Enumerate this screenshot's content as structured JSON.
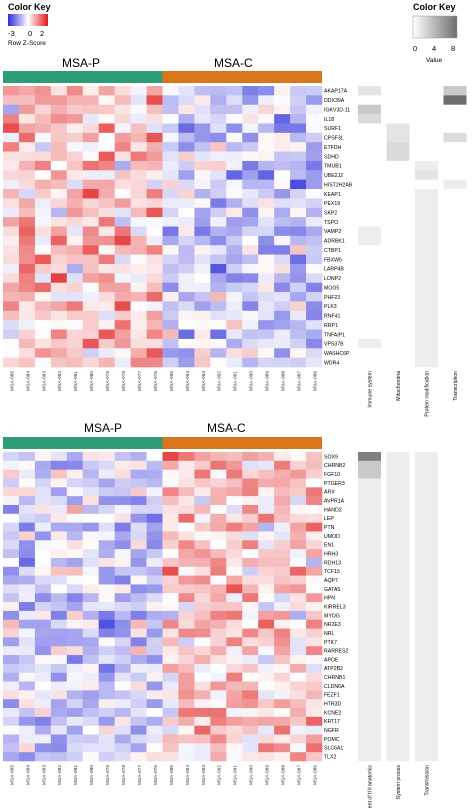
{
  "color_key_left": {
    "title": "Color Key",
    "subtitle": "Row Z-Score",
    "ticks": [
      "-3",
      "0",
      "2"
    ],
    "colors": {
      "low": "#2b2bd9",
      "mid": "#ffffff",
      "high": "#e01818"
    }
  },
  "color_key_right": {
    "title": "Color Key",
    "ticks": [
      "0",
      "4",
      "8"
    ],
    "subtitle": "Value",
    "colors": {
      "low": "#ffffff",
      "high": "#6e6e6e"
    }
  },
  "groups": {
    "p": "MSA-P",
    "c": "MSA-C",
    "p_color": "#2e9c74",
    "c_color": "#d9751b"
  },
  "samples": [
    "MSA-085",
    "MSA-084",
    "MSA-083",
    "MSA-082",
    "MSA-081",
    "MSA-080",
    "MSA-079",
    "MSA-078",
    "MSA-077",
    "MSA-076",
    "MSA-095",
    "MSA-094",
    "MSA-093",
    "MSA-092",
    "MSA-091",
    "MSA-090",
    "MSA-089",
    "MSA-088",
    "MSA-087",
    "MSA-086"
  ],
  "chart_data": [
    {
      "type": "heatmap",
      "panel": "top",
      "rows": [
        "AKAP17A",
        "DDX39A",
        "IGKV3D-11",
        "IL18",
        "SURF1",
        "CPSF3L",
        "ETFDH",
        "SDHD",
        "TMUB1",
        "UBE2J2",
        "HIST2H2AB",
        "KEAP1",
        "PEX19",
        "SKP2",
        "TSPO",
        "VAMP2",
        "ADRBK1",
        "CTBP1",
        "FBXW5",
        "LARP4B",
        "LONP2",
        "MOG5",
        "PHF23",
        "PLK3",
        "RNF41",
        "RRP1",
        "TNFAIP1",
        "VPS37B",
        "WASHC6P",
        "WDR4"
      ],
      "trend": "MSA-P higher",
      "annotation_categories": [
        "Immune system",
        "Mitochondria",
        "Protein modification",
        "Transcription"
      ],
      "annotation_values": [
        [
          1.5,
          0,
          0,
          3
        ],
        [
          0,
          0,
          0,
          8
        ],
        [
          3,
          0,
          0,
          0
        ],
        [
          2,
          0,
          0,
          0
        ],
        [
          0,
          1.5,
          0,
          0
        ],
        [
          0,
          1.5,
          0,
          2
        ],
        [
          0,
          2,
          0,
          0
        ],
        [
          0,
          2,
          0,
          0
        ],
        [
          0,
          0,
          1,
          0
        ],
        [
          0,
          0,
          1.5,
          0
        ],
        [
          0,
          0,
          0,
          1
        ],
        [
          0,
          0,
          1,
          0
        ],
        [
          0,
          0,
          1,
          0
        ],
        [
          0,
          0,
          1,
          0
        ],
        [
          0,
          0,
          1,
          0
        ],
        [
          1,
          0,
          1,
          0
        ],
        [
          1,
          0,
          1,
          0
        ],
        [
          0,
          0,
          1,
          0
        ],
        [
          0,
          0,
          1,
          0
        ],
        [
          0,
          0,
          1,
          0
        ],
        [
          0,
          0,
          1,
          0
        ],
        [
          0,
          0,
          1,
          0
        ],
        [
          0,
          0,
          1,
          0
        ],
        [
          0,
          0,
          1,
          0
        ],
        [
          0,
          0,
          1,
          0
        ],
        [
          0,
          0,
          1,
          0
        ],
        [
          0,
          0,
          1,
          0
        ],
        [
          1,
          0,
          1,
          0
        ],
        [
          0,
          0,
          1,
          0
        ],
        [
          0,
          0,
          1,
          0
        ]
      ]
    },
    {
      "type": "heatmap",
      "panel": "bottom",
      "rows": [
        "SOX9",
        "CHRNB2",
        "FGF10",
        "PTGER3",
        "ARX",
        "AVPR1A",
        "HAND2",
        "LEP",
        "PTN",
        "UMOD",
        "EN1",
        "HRH3",
        "RDH13",
        "TCF15",
        "AQP7",
        "GATA5",
        "HPN",
        "KIRREL3",
        "MYOG",
        "NR2E3",
        "NRL",
        "PTK7",
        "RARRES2",
        "APOE",
        "ATP2B2",
        "CHRNB1",
        "CLDN6A",
        "FEZF1",
        "HTR3D",
        "KCNE2",
        "KRT17",
        "NGFR",
        "POMC",
        "SLC6A1",
        "TLX2"
      ],
      "trend": "MSA-C higher",
      "annotation_categories": [
        "Development of tl ll anatomic",
        "System proces",
        "Transmission"
      ],
      "annotation_values": [
        [
          7,
          1,
          1
        ],
        [
          3,
          1,
          1
        ],
        [
          3,
          1,
          1
        ],
        [
          1,
          1,
          1
        ],
        [
          1,
          1,
          1
        ],
        [
          1,
          1,
          1
        ],
        [
          1,
          1,
          1
        ],
        [
          1,
          1,
          1
        ],
        [
          1,
          1,
          1
        ],
        [
          1,
          1,
          1
        ],
        [
          1,
          1,
          1
        ],
        [
          1,
          1,
          1
        ],
        [
          1,
          1,
          1
        ],
        [
          1,
          1,
          1
        ],
        [
          1,
          1,
          1
        ],
        [
          1,
          1,
          1
        ],
        [
          1,
          1,
          1
        ],
        [
          1,
          1,
          1
        ],
        [
          1,
          1,
          1
        ],
        [
          1,
          1,
          1
        ],
        [
          1,
          1,
          1
        ],
        [
          1,
          1,
          1
        ],
        [
          1,
          1,
          1
        ],
        [
          1,
          1,
          1
        ],
        [
          1,
          1,
          1
        ],
        [
          1,
          1,
          1
        ],
        [
          1,
          1,
          1
        ],
        [
          1,
          1,
          1
        ],
        [
          1,
          1,
          1
        ],
        [
          1,
          1,
          1
        ],
        [
          1,
          1,
          1
        ],
        [
          1,
          1,
          1
        ],
        [
          1,
          1,
          1
        ],
        [
          1,
          1,
          1
        ],
        [
          1,
          1,
          1
        ]
      ]
    }
  ]
}
